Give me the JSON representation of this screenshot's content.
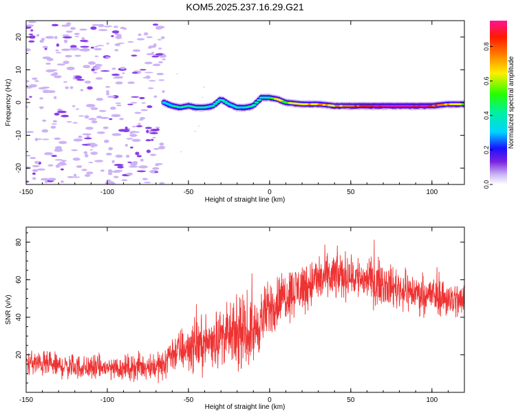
{
  "title": "KOM5.2025.237.16.29.G21",
  "chart_data": [
    {
      "type": "heatmap",
      "name": "spectrogram",
      "xlabel": "Height of straight line (km)",
      "ylabel": "Frequency (Hz)",
      "xlim": [
        -150,
        120
      ],
      "ylim": [
        -25,
        25
      ],
      "xticks": [
        -150,
        -100,
        -50,
        0,
        50,
        100
      ],
      "yticks": [
        -20,
        -10,
        0,
        10,
        20
      ],
      "xtick_labels": [
        "-150",
        "-100",
        "-50",
        "0",
        "50",
        "100"
      ],
      "ytick_labels": [
        "-20",
        "-10",
        "0",
        "10",
        "20"
      ],
      "noise_region_x": [
        -150,
        -65
      ],
      "ridge": {
        "x": [
          -65,
          -60,
          -55,
          -50,
          -45,
          -40,
          -35,
          -30,
          -25,
          -20,
          -15,
          -10,
          -5,
          0,
          5,
          10,
          20,
          30,
          40,
          50,
          60,
          70,
          80,
          90,
          100,
          110,
          120
        ],
        "freq": [
          0,
          -1,
          -1.5,
          -1,
          -1.5,
          -1.5,
          -1,
          1,
          -0.5,
          -1.5,
          -1.5,
          -1,
          1.5,
          1.5,
          1,
          0,
          -0.5,
          -0.5,
          -1,
          -1,
          -1,
          -1,
          -1,
          -1,
          -1,
          -0.5,
          -0.5
        ],
        "amplitude": [
          0.2,
          0.3,
          0.35,
          0.3,
          0.35,
          0.35,
          0.3,
          0.35,
          0.3,
          0.3,
          0.3,
          0.3,
          0.35,
          0.4,
          0.5,
          0.5,
          0.6,
          0.6,
          0.65,
          0.7,
          0.8,
          0.85,
          0.9,
          0.85,
          0.8,
          0.6,
          0.5
        ]
      }
    },
    {
      "type": "colorbar",
      "name": "colorbar",
      "label": "Normalized spectral amplitude",
      "range": [
        0,
        0.95
      ],
      "ticks": [
        "0.0",
        "0.2",
        "0.4",
        "0.6",
        "0.8"
      ],
      "tick_values": [
        0,
        0.2,
        0.4,
        0.6,
        0.8
      ]
    },
    {
      "type": "line",
      "name": "snr",
      "xlabel": "Height of straight line (km)",
      "ylabel": "SNR (v/v)",
      "xlim": [
        -150,
        120
      ],
      "ylim": [
        0,
        88
      ],
      "xticks": [
        -150,
        -100,
        -50,
        0,
        50,
        100
      ],
      "yticks": [
        20,
        40,
        60,
        80
      ],
      "xtick_labels": [
        "-150",
        "-100",
        "-50",
        "0",
        "50",
        "100"
      ],
      "ytick_labels": [
        "20",
        "40",
        "60",
        "80"
      ],
      "color": "#ee3333",
      "trend": {
        "x": [
          -150,
          -130,
          -110,
          -90,
          -75,
          -64,
          -63,
          -50,
          -40,
          -30,
          -20,
          -10,
          0,
          10,
          20,
          30,
          40,
          50,
          60,
          70,
          80,
          90,
          100,
          110,
          120
        ],
        "mean": [
          16,
          14,
          13,
          13,
          14,
          14,
          20,
          24,
          26,
          30,
          30,
          32,
          45,
          52,
          56,
          60,
          62,
          62,
          60,
          58,
          55,
          53,
          52,
          50,
          48
        ],
        "spread": [
          7,
          7,
          7,
          7,
          8,
          8,
          10,
          14,
          15,
          16,
          18,
          18,
          16,
          15,
          15,
          14,
          14,
          13,
          13,
          12,
          12,
          11,
          11,
          11,
          11
        ]
      }
    }
  ]
}
